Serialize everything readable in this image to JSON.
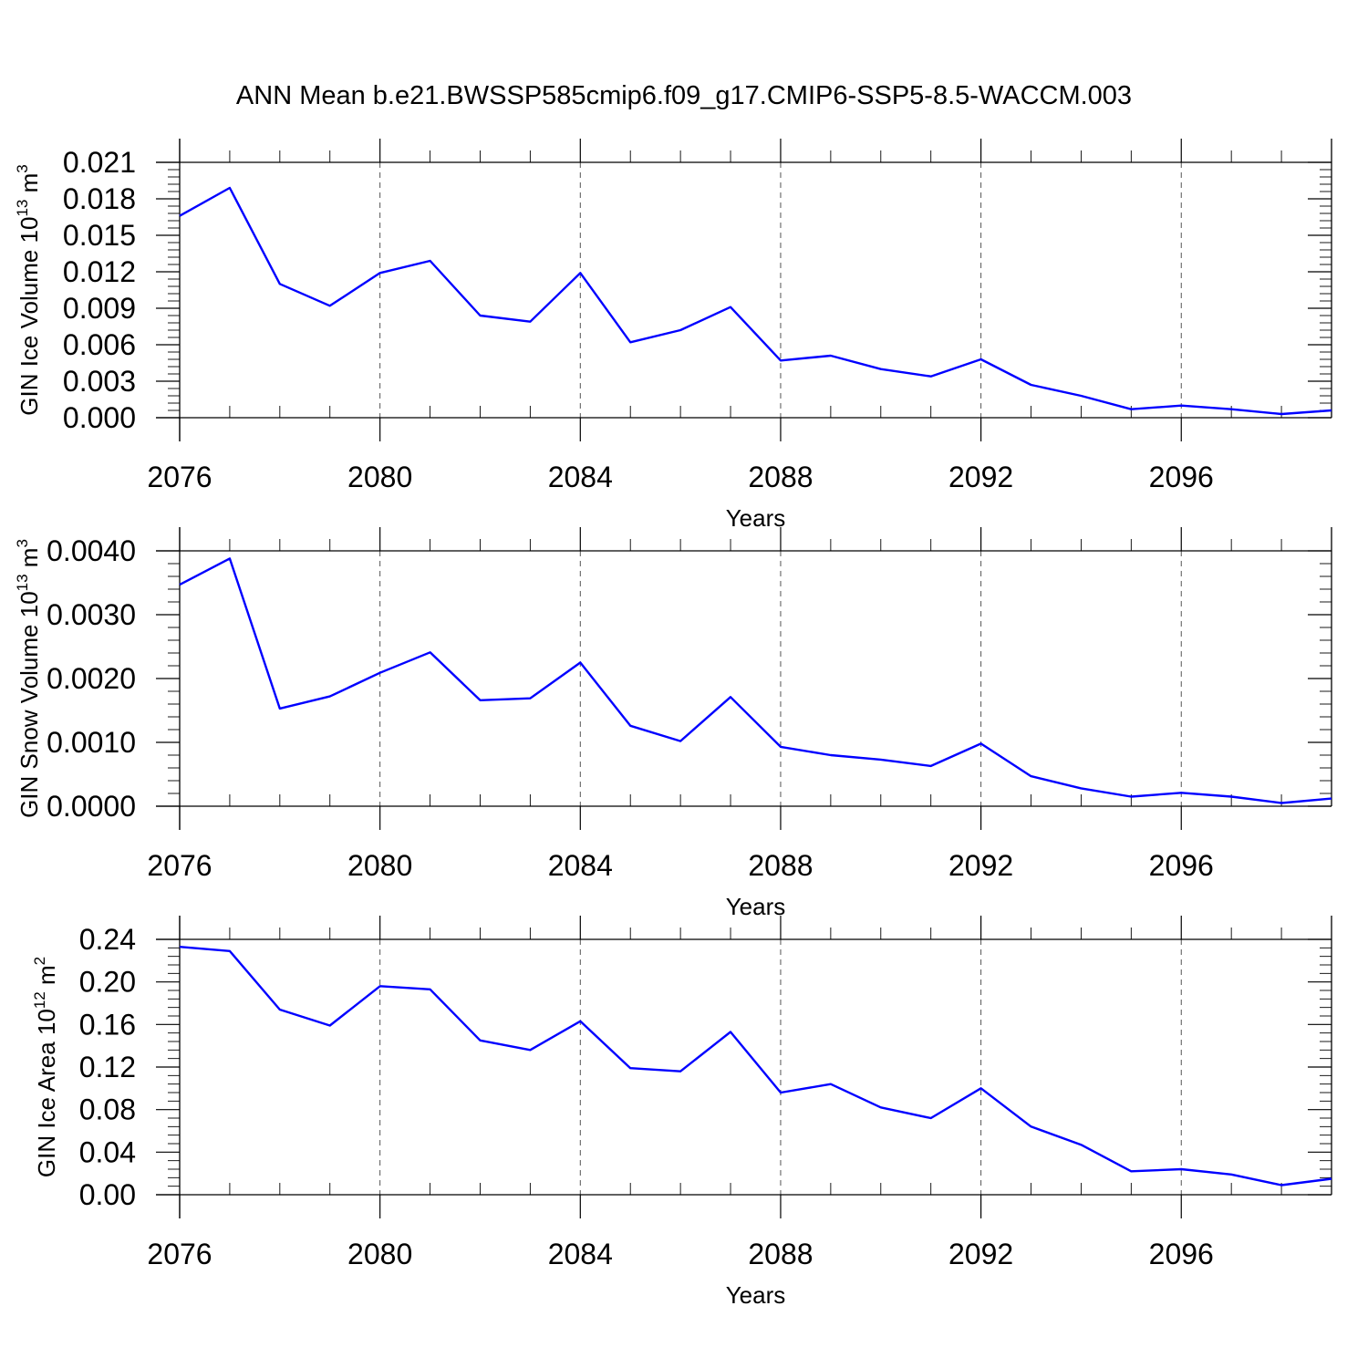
{
  "figure": {
    "title": "ANN Mean b.e21.BWSSP585cmip6.f09_g17.CMIP6-SSP5-8.5-WACCM.003"
  },
  "chart_data": [
    {
      "type": "line",
      "xlabel": "Years",
      "ylabel": {
        "text": "GIN Ice Volume 10",
        "sup1": "13",
        "mid": " m",
        "sup2": "3"
      },
      "xlim": [
        2076,
        2099
      ],
      "xticks": [
        2076,
        2080,
        2084,
        2088,
        2092,
        2096
      ],
      "xminor_step": 1,
      "ylim": [
        0,
        0.021
      ],
      "yticks": [
        0,
        0.003,
        0.006,
        0.009,
        0.012,
        0.015,
        0.018,
        0.021
      ],
      "ytick_labels": [
        "0.000",
        "0.003",
        "0.006",
        "0.009",
        "0.012",
        "0.015",
        "0.018",
        "0.021"
      ],
      "yminor_step": 0.0006,
      "grid": "x-major-dashed",
      "color": "#0000ff",
      "series": [
        {
          "x": [
            2076,
            2077,
            2078,
            2079,
            2080,
            2081,
            2082,
            2083,
            2084,
            2085,
            2086,
            2087,
            2088,
            2089,
            2090,
            2091,
            2092,
            2093,
            2094,
            2095,
            2096,
            2097,
            2098,
            2099
          ],
          "values": [
            0.0166,
            0.0189,
            0.011,
            0.0092,
            0.0119,
            0.0129,
            0.0084,
            0.0079,
            0.0119,
            0.0062,
            0.0072,
            0.0091,
            0.0047,
            0.0051,
            0.004,
            0.0034,
            0.0048,
            0.0027,
            0.0018,
            0.0007,
            0.001,
            0.0007,
            0.0003,
            0.0006
          ]
        }
      ]
    },
    {
      "type": "line",
      "xlabel": "Years",
      "ylabel": {
        "text": "GIN Snow Volume 10",
        "sup1": "13",
        "mid": " m",
        "sup2": "3"
      },
      "xlim": [
        2076,
        2099
      ],
      "xticks": [
        2076,
        2080,
        2084,
        2088,
        2092,
        2096
      ],
      "xminor_step": 1,
      "ylim": [
        0,
        0.004
      ],
      "yticks": [
        0,
        0.001,
        0.002,
        0.003,
        0.004
      ],
      "ytick_labels": [
        "0.0000",
        "0.0010",
        "0.0020",
        "0.0030",
        "0.0040"
      ],
      "yminor_step": 0.0002,
      "grid": "x-major-dashed",
      "color": "#0000ff",
      "series": [
        {
          "x": [
            2076,
            2077,
            2078,
            2079,
            2080,
            2081,
            2082,
            2083,
            2084,
            2085,
            2086,
            2087,
            2088,
            2089,
            2090,
            2091,
            2092,
            2093,
            2094,
            2095,
            2096,
            2097,
            2098,
            2099
          ],
          "values": [
            0.00347,
            0.00388,
            0.00153,
            0.00172,
            0.00209,
            0.00241,
            0.00166,
            0.00169,
            0.00225,
            0.00126,
            0.00102,
            0.00171,
            0.00093,
            0.0008,
            0.00073,
            0.00063,
            0.00098,
            0.00047,
            0.00028,
            0.00015,
            0.00021,
            0.00015,
            5e-05,
            0.00012
          ]
        }
      ]
    },
    {
      "type": "line",
      "xlabel": "Years",
      "ylabel": {
        "text": "GIN Ice Area 10",
        "sup1": "12",
        "mid": " m",
        "sup2": "2"
      },
      "xlim": [
        2076,
        2099
      ],
      "xticks": [
        2076,
        2080,
        2084,
        2088,
        2092,
        2096
      ],
      "xminor_step": 1,
      "ylim": [
        0,
        0.24
      ],
      "yticks": [
        0,
        0.04,
        0.08,
        0.12,
        0.16,
        0.2,
        0.24
      ],
      "ytick_labels": [
        "0.00",
        "0.04",
        "0.08",
        "0.12",
        "0.16",
        "0.20",
        "0.24"
      ],
      "yminor_step": 0.008,
      "grid": "x-major-dashed",
      "color": "#0000ff",
      "series": [
        {
          "x": [
            2076,
            2077,
            2078,
            2079,
            2080,
            2081,
            2082,
            2083,
            2084,
            2085,
            2086,
            2087,
            2088,
            2089,
            2090,
            2091,
            2092,
            2093,
            2094,
            2095,
            2096,
            2097,
            2098,
            2099
          ],
          "values": [
            0.233,
            0.229,
            0.174,
            0.159,
            0.196,
            0.193,
            0.145,
            0.136,
            0.163,
            0.119,
            0.116,
            0.153,
            0.096,
            0.104,
            0.082,
            0.072,
            0.1,
            0.064,
            0.047,
            0.022,
            0.024,
            0.019,
            0.009,
            0.015
          ]
        }
      ]
    }
  ]
}
